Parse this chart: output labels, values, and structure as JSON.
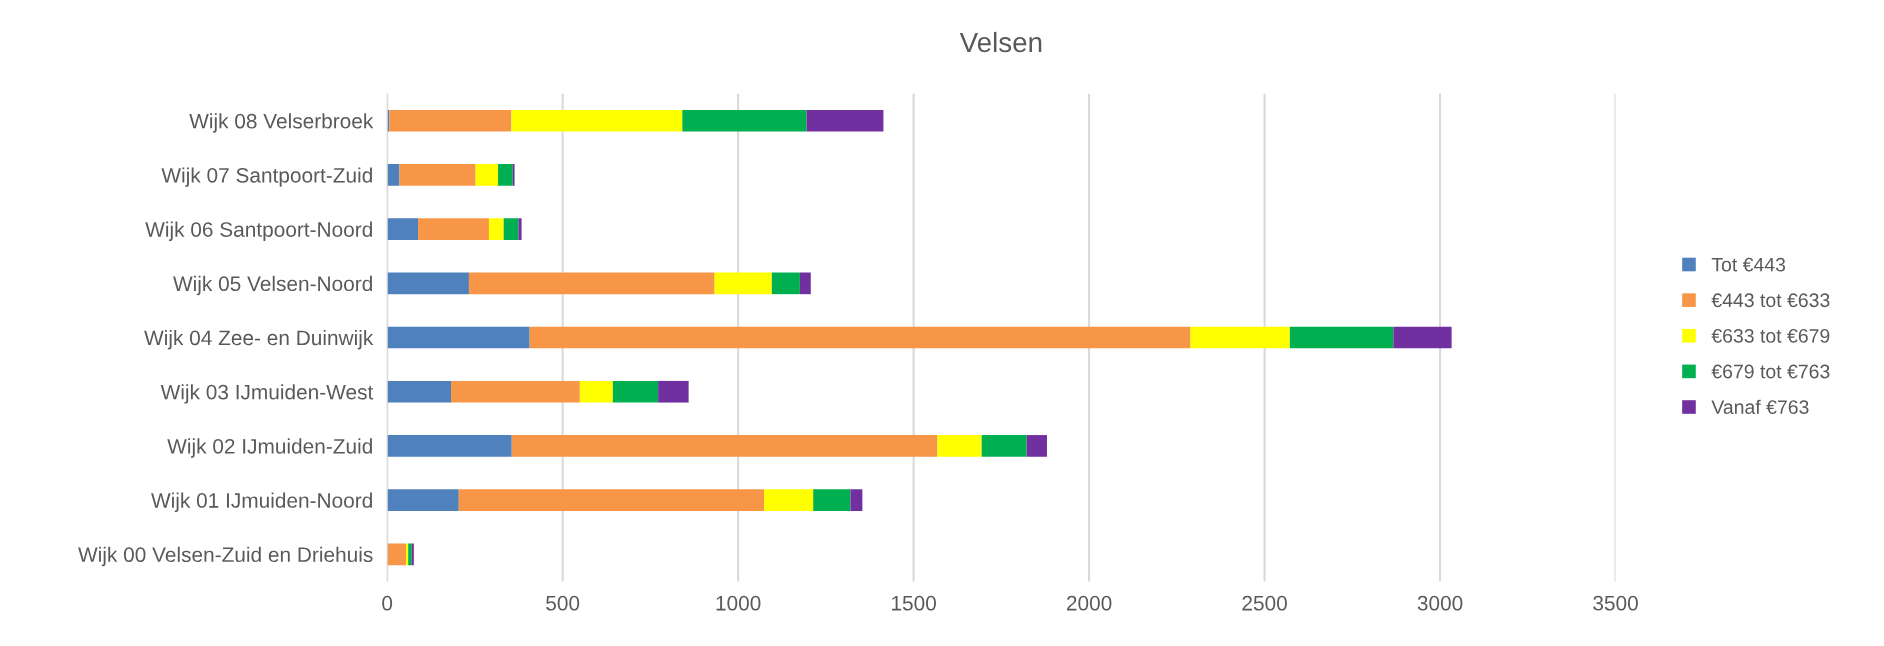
{
  "chart_data": {
    "type": "bar",
    "title": "Velsen",
    "orientation": "horizontal",
    "stacked": true,
    "categories": [
      "Wijk 08 Velserbroek",
      "Wijk 07 Santpoort-Zuid",
      "Wijk 06 Santpoort-Noord",
      "Wijk 05 Velsen-Noord",
      "Wijk 04 Zee- en Duinwijk",
      "Wijk 03 IJmuiden-West",
      "Wijk 02 IJmuiden-Zuid",
      "Wijk 01 IJmuiden-Noord",
      "Wijk 00 Velsen-Zuid en Driehuis"
    ],
    "series": [
      {
        "name": "Tot €443",
        "color": "#4f81bd",
        "values": [
          6,
          35,
          88,
          233,
          406,
          182,
          355,
          204,
          null
        ]
      },
      {
        "name": "€443 tot €633",
        "color": "#f79646",
        "values": [
          348,
          217,
          202,
          700,
          1883,
          367,
          1213,
          870,
          54
        ]
      },
      {
        "name": "€633 tot €679",
        "color": "#ffff00",
        "values": [
          487,
          64,
          42,
          163,
          283,
          94,
          126,
          140,
          6
        ]
      },
      {
        "name": "€679 tot €763",
        "color": "#00b050",
        "values": [
          354,
          42,
          42,
          80,
          295,
          129,
          128,
          106,
          10
        ]
      },
      {
        "name": "Vanaf €763",
        "color": "#7030a0",
        "values": [
          219,
          5,
          9,
          31,
          166,
          87,
          58,
          34,
          6
        ]
      }
    ],
    "xlim": [
      0,
      3500
    ],
    "xticks": [
      0,
      500,
      1000,
      1500,
      2000,
      2500,
      3000,
      3500
    ],
    "grid": "x",
    "legend": "right"
  }
}
